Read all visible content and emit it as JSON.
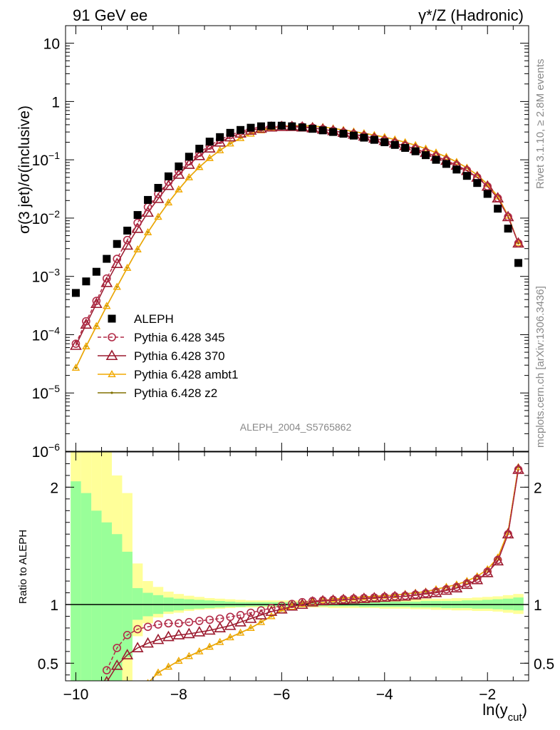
{
  "header": {
    "left_title": "91 GeV ee",
    "right_title": "γ*/Z (Hadronic)",
    "side_top": "Rivet 3.1.10, ≥ 2.8M events",
    "side_bottom": "mcplots.cern.ch [arXiv:1306.3436]"
  },
  "chart_data": [
    {
      "type": "scatter",
      "panel": "main",
      "ylabel": "σ(3 jet)/σ(inclusive)",
      "xlabel": "ln(y_cut)",
      "yscale": "log",
      "ylim": [
        1e-06,
        20
      ],
      "xlim": [
        -10.2,
        -1.2
      ],
      "annotation": "ALEPH_2004_S5765862",
      "legend_position": "lower-left",
      "x": [
        -10.0,
        -9.8,
        -9.6,
        -9.4,
        -9.2,
        -9.0,
        -8.8,
        -8.6,
        -8.4,
        -8.2,
        -8.0,
        -7.8,
        -7.6,
        -7.4,
        -7.2,
        -7.0,
        -6.8,
        -6.6,
        -6.4,
        -6.2,
        -6.0,
        -5.8,
        -5.6,
        -5.4,
        -5.2,
        -5.0,
        -4.8,
        -4.6,
        -4.4,
        -4.2,
        -4.0,
        -3.8,
        -3.6,
        -3.4,
        -3.2,
        -3.0,
        -2.8,
        -2.6,
        -2.4,
        -2.2,
        -2.0,
        -1.8,
        -1.6,
        -1.4
      ],
      "series": [
        {
          "name": "ALEPH",
          "color": "#000000",
          "marker": "square",
          "y": [
            0.00052,
            0.00082,
            0.0012,
            0.002,
            0.0036,
            0.0061,
            0.0113,
            0.0205,
            0.033,
            0.052,
            0.077,
            0.113,
            0.155,
            0.205,
            0.245,
            0.29,
            0.325,
            0.355,
            0.375,
            0.385,
            0.385,
            0.375,
            0.36,
            0.34,
            0.32,
            0.3,
            0.28,
            0.26,
            0.24,
            0.22,
            0.2,
            0.18,
            0.16,
            0.14,
            0.12,
            0.1,
            0.085,
            0.068,
            0.053,
            0.04,
            0.026,
            0.0145,
            0.0066,
            0.0017
          ]
        },
        {
          "name": "Pythia 6.428 345",
          "color": "#b22c48",
          "marker": "open-circle",
          "dashed": true,
          "y": [
            7e-05,
            0.00017,
            0.00038,
            0.00092,
            0.002,
            0.0042,
            0.0083,
            0.0155,
            0.026,
            0.042,
            0.064,
            0.094,
            0.132,
            0.175,
            0.22,
            0.265,
            0.305,
            0.34,
            0.365,
            0.38,
            0.385,
            0.38,
            0.37,
            0.355,
            0.335,
            0.315,
            0.295,
            0.275,
            0.255,
            0.235,
            0.215,
            0.195,
            0.175,
            0.155,
            0.135,
            0.115,
            0.098,
            0.081,
            0.066,
            0.05,
            0.035,
            0.022,
            0.0105,
            0.0037
          ]
        },
        {
          "name": "Pythia 6.428 370",
          "color": "#9b1a2e",
          "marker": "open-triangle",
          "y": [
            6.5e-05,
            0.00015,
            0.00034,
            0.00078,
            0.00165,
            0.0034,
            0.0066,
            0.0125,
            0.0215,
            0.036,
            0.056,
            0.083,
            0.117,
            0.158,
            0.2,
            0.245,
            0.285,
            0.32,
            0.345,
            0.362,
            0.37,
            0.37,
            0.362,
            0.35,
            0.333,
            0.313,
            0.293,
            0.273,
            0.253,
            0.233,
            0.213,
            0.193,
            0.173,
            0.153,
            0.133,
            0.114,
            0.097,
            0.08,
            0.065,
            0.05,
            0.035,
            0.022,
            0.0105,
            0.0037
          ]
        },
        {
          "name": "Pythia 6.428 ambt1",
          "color": "#f2a900",
          "marker": "open-triangle-small",
          "y": [
            2.7e-05,
            6.3e-05,
            0.00014,
            0.00031,
            0.00066,
            0.0014,
            0.0029,
            0.0057,
            0.0105,
            0.0185,
            0.031,
            0.05,
            0.075,
            0.107,
            0.145,
            0.19,
            0.235,
            0.28,
            0.32,
            0.352,
            0.375,
            0.385,
            0.385,
            0.38,
            0.365,
            0.345,
            0.325,
            0.305,
            0.285,
            0.265,
            0.245,
            0.223,
            0.2,
            0.178,
            0.155,
            0.133,
            0.112,
            0.092,
            0.073,
            0.055,
            0.038,
            0.0235,
            0.011,
            0.0037
          ]
        },
        {
          "name": "Pythia 6.428 z2",
          "color": "#807000",
          "marker": "dot",
          "y": [
            2.7e-05,
            6.3e-05,
            0.00014,
            0.00031,
            0.00066,
            0.0014,
            0.0029,
            0.0057,
            0.0105,
            0.0185,
            0.031,
            0.05,
            0.075,
            0.107,
            0.145,
            0.19,
            0.235,
            0.28,
            0.32,
            0.352,
            0.375,
            0.385,
            0.385,
            0.38,
            0.365,
            0.345,
            0.325,
            0.305,
            0.285,
            0.265,
            0.245,
            0.223,
            0.2,
            0.178,
            0.155,
            0.133,
            0.112,
            0.092,
            0.073,
            0.055,
            0.038,
            0.0235,
            0.011,
            0.0037
          ]
        }
      ],
      "yticks": [
        {
          "v": 10,
          "b": "10",
          "e": ""
        },
        {
          "v": 1,
          "b": "1",
          "e": ""
        },
        {
          "v": 0.1,
          "b": "10",
          "e": "−1"
        },
        {
          "v": 0.01,
          "b": "10",
          "e": "−2"
        },
        {
          "v": 0.001,
          "b": "10",
          "e": "−3"
        },
        {
          "v": 0.0001,
          "b": "10",
          "e": "−4"
        },
        {
          "v": 1e-05,
          "b": "10",
          "e": "−5"
        },
        {
          "v": 1e-06,
          "b": "10",
          "e": "−6"
        }
      ]
    },
    {
      "type": "line",
      "panel": "ratio",
      "ylabel": "Ratio to ALEPH",
      "xlabel": "ln(y_cut)",
      "ylim": [
        0.35,
        2.3
      ],
      "xlim": [
        -10.2,
        -1.2
      ],
      "xticks": [
        -10,
        -8,
        -6,
        -4,
        -2
      ],
      "xticklabels": [
        "−10",
        "−8",
        "−6",
        "−4",
        "−2"
      ],
      "yticks": [
        0.5,
        1,
        2
      ],
      "yticklabels": [
        "0.5",
        "1",
        "2"
      ],
      "x": [
        -10.0,
        -9.8,
        -9.6,
        -9.4,
        -9.2,
        -9.0,
        -8.8,
        -8.6,
        -8.4,
        -8.2,
        -8.0,
        -7.8,
        -7.6,
        -7.4,
        -7.2,
        -7.0,
        -6.8,
        -6.6,
        -6.4,
        -6.2,
        -6.0,
        -5.8,
        -5.6,
        -5.4,
        -5.2,
        -5.0,
        -4.8,
        -4.6,
        -4.4,
        -4.2,
        -4.0,
        -3.8,
        -3.6,
        -3.4,
        -3.2,
        -3.0,
        -2.8,
        -2.6,
        -2.4,
        -2.2,
        -2.0,
        -1.8,
        -1.6,
        -1.4
      ],
      "band_yellow": {
        "lo": [
          0.0,
          0.0,
          0.0,
          0.0,
          0.0,
          0.3,
          0.73,
          0.84,
          0.89,
          0.92,
          0.93,
          0.945,
          0.955,
          0.96,
          0.965,
          0.97,
          0.975,
          0.975,
          0.975,
          0.975,
          0.975,
          0.975,
          0.975,
          0.975,
          0.975,
          0.97,
          0.97,
          0.97,
          0.97,
          0.97,
          0.965,
          0.965,
          0.965,
          0.96,
          0.96,
          0.955,
          0.955,
          0.95,
          0.95,
          0.945,
          0.945,
          0.94,
          0.93,
          0.92
        ],
        "hi": [
          2.6,
          2.6,
          2.5,
          2.3,
          2.1,
          1.95,
          1.35,
          1.2,
          1.15,
          1.11,
          1.09,
          1.075,
          1.065,
          1.055,
          1.05,
          1.045,
          1.04,
          1.035,
          1.035,
          1.035,
          1.035,
          1.035,
          1.035,
          1.035,
          1.035,
          1.035,
          1.035,
          1.04,
          1.04,
          1.04,
          1.04,
          1.045,
          1.045,
          1.045,
          1.05,
          1.05,
          1.05,
          1.055,
          1.055,
          1.06,
          1.065,
          1.07,
          1.08,
          1.09
        ]
      },
      "band_green": {
        "lo": [
          0.35,
          0.35,
          0.35,
          0.35,
          0.35,
          0.55,
          0.87,
          0.9,
          0.92,
          0.94,
          0.95,
          0.96,
          0.965,
          0.97,
          0.975,
          0.98,
          0.98,
          0.985,
          0.985,
          0.985,
          0.985,
          0.985,
          0.985,
          0.985,
          0.985,
          0.985,
          0.985,
          0.985,
          0.98,
          0.98,
          0.98,
          0.98,
          0.98,
          0.975,
          0.975,
          0.975,
          0.97,
          0.97,
          0.97,
          0.965,
          0.965,
          0.96,
          0.955,
          0.95
        ],
        "hi": [
          2.05,
          1.95,
          1.8,
          1.7,
          1.6,
          1.45,
          1.14,
          1.1,
          1.08,
          1.06,
          1.05,
          1.045,
          1.04,
          1.035,
          1.03,
          1.025,
          1.02,
          1.02,
          1.02,
          1.02,
          1.02,
          1.02,
          1.02,
          1.02,
          1.02,
          1.02,
          1.02,
          1.02,
          1.02,
          1.02,
          1.025,
          1.025,
          1.025,
          1.025,
          1.03,
          1.03,
          1.03,
          1.03,
          1.035,
          1.035,
          1.04,
          1.045,
          1.05,
          1.06
        ]
      },
      "series": [
        {
          "name": "Pythia 6.428 345",
          "color": "#b22c48",
          "marker": "open-circle",
          "dashed": true,
          "y": [
            null,
            null,
            null,
            0.44,
            0.63,
            0.74,
            0.79,
            0.81,
            0.83,
            0.84,
            0.84,
            0.85,
            0.86,
            0.87,
            0.88,
            0.895,
            0.91,
            0.93,
            0.95,
            0.97,
            0.99,
            1.005,
            1.02,
            1.03,
            1.035,
            1.04,
            1.045,
            1.05,
            1.055,
            1.06,
            1.065,
            1.07,
            1.075,
            1.085,
            1.095,
            1.11,
            1.13,
            1.15,
            1.18,
            1.22,
            1.28,
            1.38,
            1.6,
            2.15
          ]
        },
        {
          "name": "Pythia 6.428 370",
          "color": "#9b1a2e",
          "marker": "open-triangle",
          "y": [
            null,
            null,
            null,
            0.34,
            0.48,
            0.57,
            0.63,
            0.67,
            0.7,
            0.725,
            0.74,
            0.75,
            0.765,
            0.78,
            0.8,
            0.82,
            0.85,
            0.88,
            0.91,
            0.94,
            0.96,
            0.985,
            1.0,
            1.02,
            1.03,
            1.035,
            1.04,
            1.045,
            1.05,
            1.055,
            1.06,
            1.065,
            1.07,
            1.08,
            1.09,
            1.1,
            1.12,
            1.14,
            1.17,
            1.21,
            1.27,
            1.37,
            1.6,
            2.15
          ]
        },
        {
          "name": "Pythia 6.428 ambt1",
          "color": "#f2a900",
          "marker": "open-triangle-small",
          "y": [
            null,
            null,
            null,
            null,
            null,
            null,
            null,
            0.33,
            0.42,
            0.47,
            0.52,
            0.56,
            0.6,
            0.64,
            0.68,
            0.72,
            0.76,
            0.8,
            0.85,
            0.9,
            0.95,
            0.98,
            1.005,
            1.02,
            1.035,
            1.045,
            1.055,
            1.06,
            1.065,
            1.07,
            1.075,
            1.08,
            1.09,
            1.1,
            1.11,
            1.13,
            1.15,
            1.17,
            1.2,
            1.24,
            1.3,
            1.4,
            1.62,
            2.17
          ]
        },
        {
          "name": "Pythia 6.428 z2",
          "color": "#807000",
          "marker": "dot",
          "y": [
            null,
            null,
            null,
            null,
            null,
            null,
            null,
            0.33,
            0.42,
            0.47,
            0.52,
            0.56,
            0.6,
            0.64,
            0.68,
            0.72,
            0.76,
            0.8,
            0.85,
            0.9,
            0.95,
            0.98,
            1.005,
            1.02,
            1.035,
            1.045,
            1.055,
            1.06,
            1.065,
            1.07,
            1.075,
            1.08,
            1.09,
            1.1,
            1.11,
            1.13,
            1.15,
            1.17,
            1.2,
            1.24,
            1.3,
            1.4,
            1.62,
            2.17
          ]
        }
      ]
    }
  ]
}
